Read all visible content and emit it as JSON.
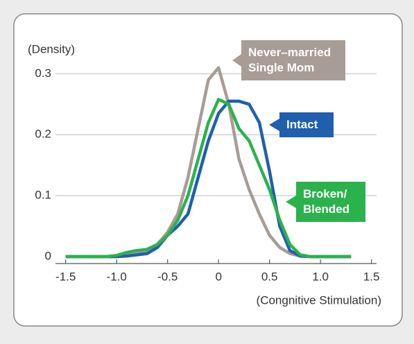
{
  "chart_data": {
    "type": "line",
    "y_label": "(Density)",
    "x_label": "(Congnitive Stimulation)",
    "x": [
      -1.5,
      -1.4,
      -1.3,
      -1.2,
      -1.1,
      -1.0,
      -0.9,
      -0.8,
      -0.7,
      -0.6,
      -0.5,
      -0.4,
      -0.3,
      -0.2,
      -0.1,
      0,
      0.1,
      0.2,
      0.3,
      0.4,
      0.5,
      0.6,
      0.7,
      0.8,
      0.9,
      1.0,
      1.1,
      1.2,
      1.3
    ],
    "series": [
      {
        "name": "Never–married Single Mom",
        "color": "#a89c97",
        "values": [
          0,
          0,
          0,
          0,
          0,
          0,
          0.002,
          0.005,
          0.008,
          0.02,
          0.04,
          0.07,
          0.13,
          0.21,
          0.29,
          0.31,
          0.25,
          0.16,
          0.11,
          0.07,
          0.035,
          0.015,
          0.005,
          0.001,
          0,
          0,
          0,
          0,
          0
        ]
      },
      {
        "name": "Intact",
        "color": "#1f5fae",
        "values": [
          0,
          0,
          0,
          0,
          0,
          0,
          0.001,
          0.003,
          0.005,
          0.015,
          0.035,
          0.05,
          0.07,
          0.13,
          0.19,
          0.235,
          0.255,
          0.255,
          0.25,
          0.22,
          0.14,
          0.05,
          0.01,
          0.001,
          0,
          0,
          0,
          0,
          0
        ]
      },
      {
        "name": "Broken/ Blended",
        "color": "#2bb24c",
        "values": [
          0,
          0,
          0,
          0,
          0,
          0.002,
          0.007,
          0.01,
          0.012,
          0.02,
          0.035,
          0.06,
          0.1,
          0.16,
          0.22,
          0.258,
          0.25,
          0.21,
          0.19,
          0.15,
          0.11,
          0.06,
          0.02,
          0.003,
          0,
          0,
          0,
          0,
          0
        ]
      }
    ],
    "xlim": [
      -1.6,
      1.55
    ],
    "ylim": [
      0,
      0.33
    ],
    "xticks": [
      -1.5,
      {
        "value": -1,
        "label": "-1.0"
      },
      -0.5,
      0,
      0.5,
      {
        "value": 1,
        "label": "1.0"
      },
      1.5
    ],
    "yticks": [
      0,
      0.1,
      0.2,
      0.3
    ],
    "grid": true
  }
}
